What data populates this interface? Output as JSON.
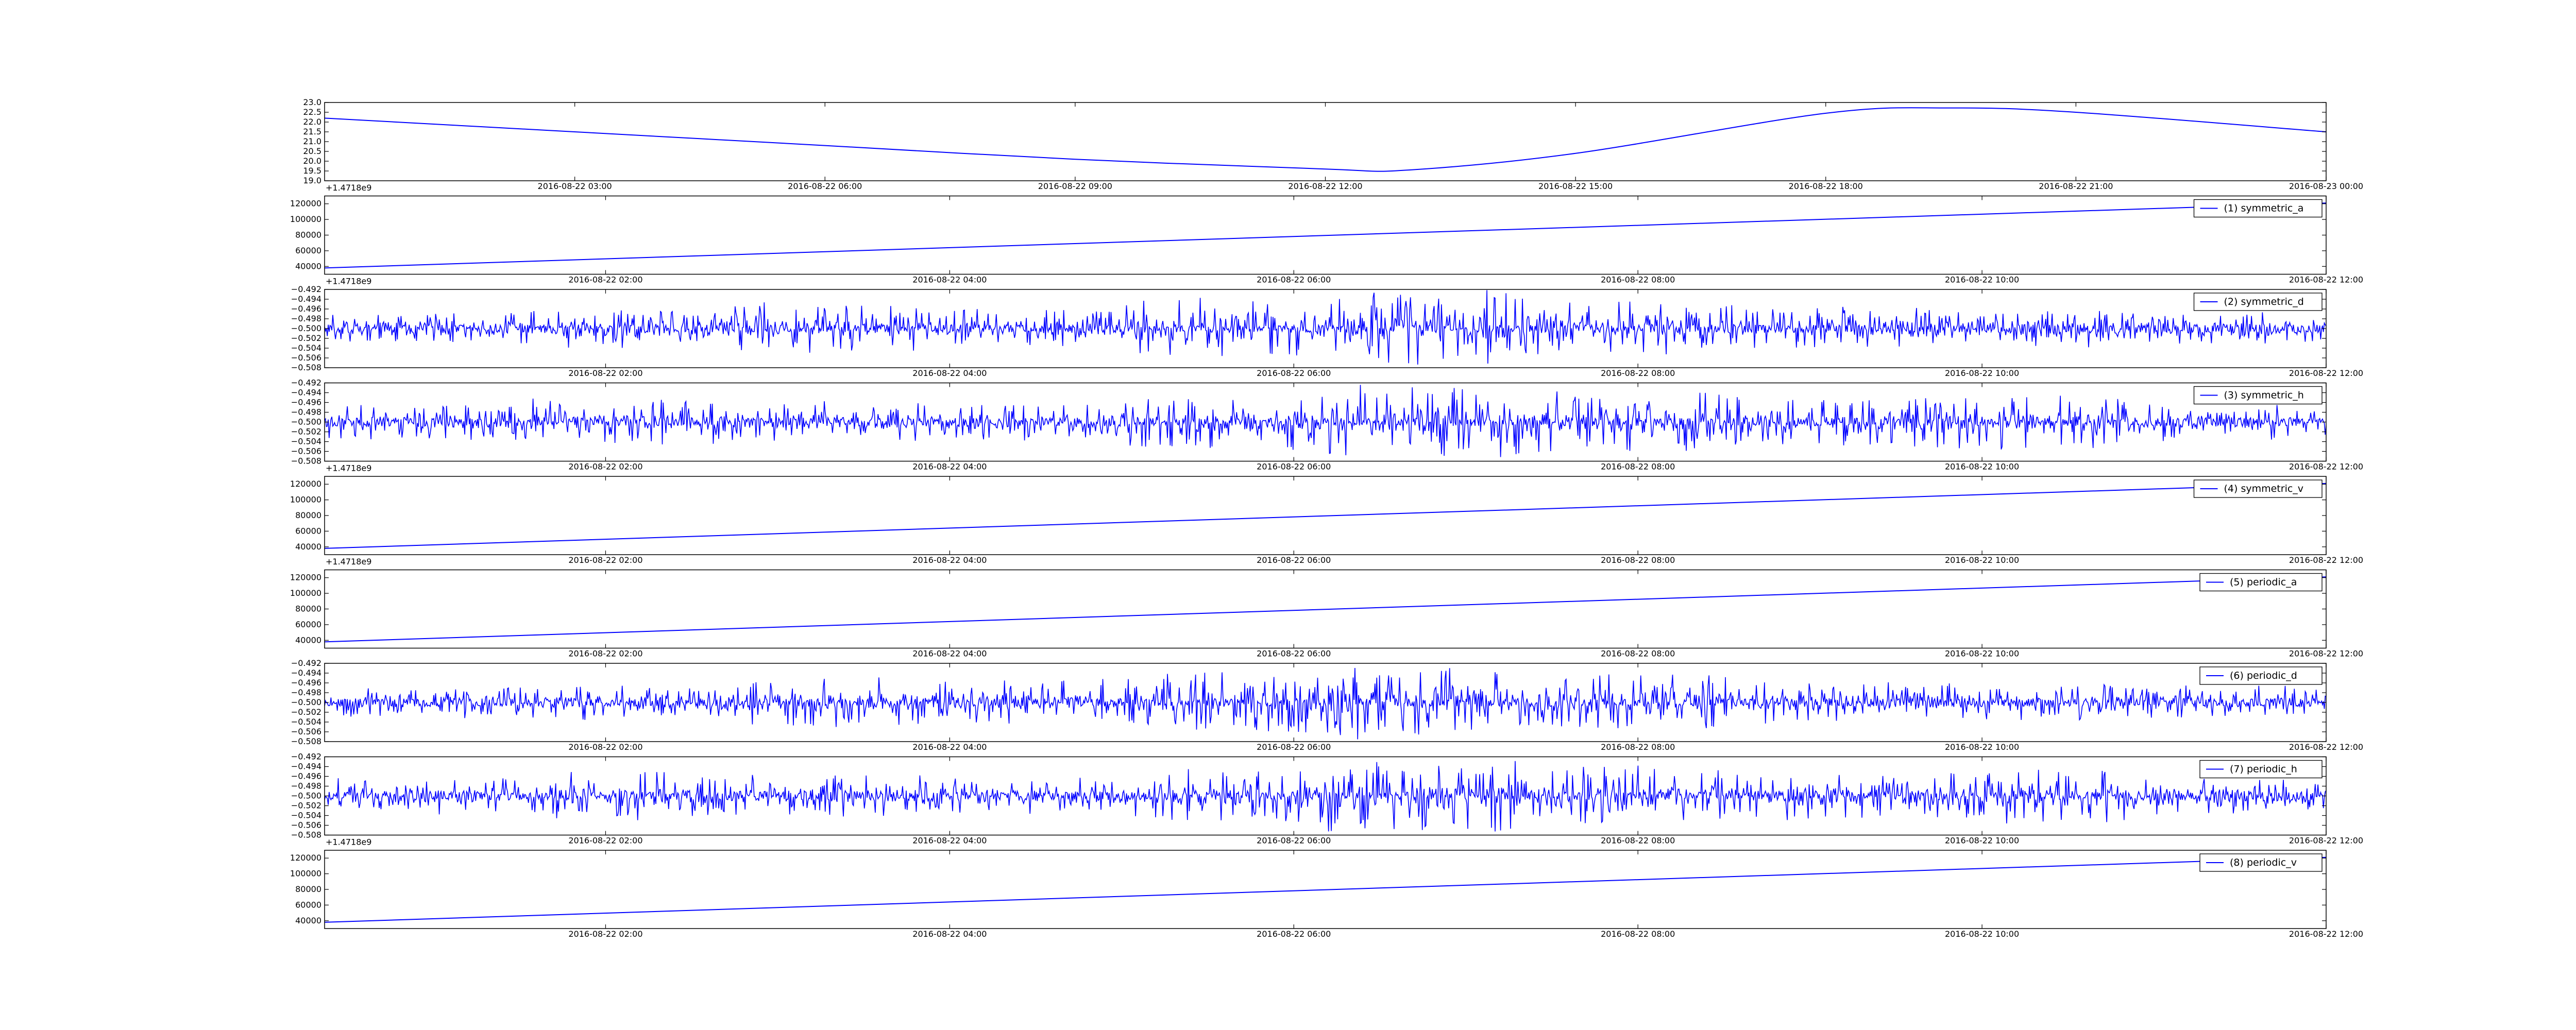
{
  "colors": {
    "line": "#0000ff",
    "axes": "#000000",
    "background": "#ffffff"
  },
  "chart_data": [
    {
      "type": "line",
      "kind": "smooth",
      "legend": "",
      "ylim": [
        19.0,
        23.0
      ],
      "yticks": [
        "19.0",
        "19.5",
        "20.0",
        "20.5",
        "21.0",
        "21.5",
        "22.0",
        "22.5",
        "23.0"
      ],
      "xlim": [
        "2016-08-22 00:00",
        "2016-08-23 00:00"
      ],
      "xtick_labels": [
        "2016-08-22 03:00",
        "2016-08-22 06:00",
        "2016-08-22 09:00",
        "2016-08-22 12:00",
        "2016-08-22 15:00",
        "2016-08-22 18:00",
        "2016-08-22 21:00",
        "2016-08-23 00:00"
      ],
      "offset_label": "+1.4718e9",
      "series": [
        {
          "x": [
            "2016-08-22 00:00",
            "2016-08-22 03:00",
            "2016-08-22 06:00",
            "2016-08-22 09:00",
            "2016-08-22 12:00",
            "2016-08-22 13:00",
            "2016-08-22 15:00",
            "2016-08-22 18:00",
            "2016-08-22 19:30",
            "2016-08-22 21:00",
            "2016-08-23 00:00"
          ],
          "values": [
            22.2,
            21.5,
            20.8,
            20.1,
            19.6,
            19.55,
            20.4,
            22.45,
            22.72,
            22.5,
            21.5
          ]
        }
      ]
    },
    {
      "type": "line",
      "kind": "linear",
      "legend": "(1) symmetric_a",
      "ylim": [
        30000,
        130000
      ],
      "yticks": [
        "40000",
        "60000",
        "80000",
        "100000",
        "120000"
      ],
      "xlim": [
        "2016-08-22 00:22",
        "2016-08-22 12:00"
      ],
      "xtick_labels": [
        "2016-08-22 02:00",
        "2016-08-22 04:00",
        "2016-08-22 06:00",
        "2016-08-22 08:00",
        "2016-08-22 10:00",
        "2016-08-22 12:00"
      ],
      "offset_label": "+1.4718e9",
      "series": [
        {
          "x": [
            "2016-08-22 00:22",
            "2016-08-22 12:00"
          ],
          "values": [
            38000,
            121000
          ]
        }
      ]
    },
    {
      "type": "line",
      "kind": "noise",
      "legend": "(2) symmetric_d",
      "ylim": [
        -0.508,
        -0.492
      ],
      "yticks": [
        "−0.508",
        "−0.506",
        "−0.504",
        "−0.502",
        "−0.500",
        "−0.498",
        "−0.496",
        "−0.494",
        "−0.492"
      ],
      "xlim": [
        "2016-08-22 00:22",
        "2016-08-22 12:00"
      ],
      "xtick_labels": [
        "2016-08-22 02:00",
        "2016-08-22 04:00",
        "2016-08-22 06:00",
        "2016-08-22 08:00",
        "2016-08-22 10:00",
        "2016-08-22 12:00"
      ],
      "offset_label": "",
      "series": [
        {
          "center": -0.5,
          "bias": 0.0008,
          "amp": [
            0.0025,
            0.003,
            0.004,
            0.0035,
            0.005,
            0.006,
            0.0045,
            0.0035,
            0.003,
            0.0025
          ],
          "seed": 11
        }
      ]
    },
    {
      "type": "line",
      "kind": "noise",
      "legend": "(3) symmetric_h",
      "ylim": [
        -0.508,
        -0.492
      ],
      "yticks": [
        "−0.508",
        "−0.506",
        "−0.504",
        "−0.502",
        "−0.500",
        "−0.498",
        "−0.496",
        "−0.494",
        "−0.492"
      ],
      "xlim": [
        "2016-08-22 00:22",
        "2016-08-22 12:00"
      ],
      "xtick_labels": [
        "2016-08-22 02:00",
        "2016-08-22 04:00",
        "2016-08-22 06:00",
        "2016-08-22 08:00",
        "2016-08-22 10:00",
        "2016-08-22 12:00"
      ],
      "offset_label": "+1.4718e9",
      "series": [
        {
          "center": -0.5,
          "bias": -0.0004,
          "amp": [
            0.003,
            0.004,
            0.0035,
            0.003,
            0.0045,
            0.006,
            0.005,
            0.004,
            0.0045,
            0.003
          ],
          "seed": 23
        }
      ]
    },
    {
      "type": "line",
      "kind": "linear",
      "legend": "(4) symmetric_v",
      "ylim": [
        30000,
        130000
      ],
      "yticks": [
        "40000",
        "60000",
        "80000",
        "100000",
        "120000"
      ],
      "xlim": [
        "2016-08-22 00:22",
        "2016-08-22 12:00"
      ],
      "xtick_labels": [
        "2016-08-22 02:00",
        "2016-08-22 04:00",
        "2016-08-22 06:00",
        "2016-08-22 08:00",
        "2016-08-22 10:00",
        "2016-08-22 12:00"
      ],
      "offset_label": "+1.4718e9",
      "series": [
        {
          "x": [
            "2016-08-22 00:22",
            "2016-08-22 12:00"
          ],
          "values": [
            38000,
            121000
          ]
        }
      ]
    },
    {
      "type": "line",
      "kind": "linear",
      "legend": "(5) periodic_a",
      "ylim": [
        30000,
        130000
      ],
      "yticks": [
        "40000",
        "60000",
        "80000",
        "100000",
        "120000"
      ],
      "xlim": [
        "2016-08-22 00:22",
        "2016-08-22 12:00"
      ],
      "xtick_labels": [
        "2016-08-22 02:00",
        "2016-08-22 04:00",
        "2016-08-22 06:00",
        "2016-08-22 08:00",
        "2016-08-22 10:00",
        "2016-08-22 12:00"
      ],
      "offset_label": "",
      "series": [
        {
          "x": [
            "2016-08-22 00:22",
            "2016-08-22 12:00"
          ],
          "values": [
            38000,
            121000
          ]
        }
      ]
    },
    {
      "type": "line",
      "kind": "noise",
      "legend": "(6) periodic_d",
      "ylim": [
        -0.508,
        -0.492
      ],
      "yticks": [
        "−0.508",
        "−0.506",
        "−0.504",
        "−0.502",
        "−0.500",
        "−0.498",
        "−0.496",
        "−0.494",
        "−0.492"
      ],
      "xlim": [
        "2016-08-22 00:22",
        "2016-08-22 12:00"
      ],
      "xtick_labels": [
        "2016-08-22 02:00",
        "2016-08-22 04:00",
        "2016-08-22 06:00",
        "2016-08-22 08:00",
        "2016-08-22 10:00",
        "2016-08-22 12:00"
      ],
      "offset_label": "",
      "series": [
        {
          "center": -0.5,
          "bias": 0.0008,
          "amp": [
            0.0025,
            0.003,
            0.004,
            0.0035,
            0.005,
            0.006,
            0.0045,
            0.0035,
            0.003,
            0.0025
          ],
          "seed": 37
        }
      ]
    },
    {
      "type": "line",
      "kind": "noise",
      "legend": "(7) periodic_h",
      "ylim": [
        -0.508,
        -0.492
      ],
      "yticks": [
        "−0.508",
        "−0.506",
        "−0.504",
        "−0.502",
        "−0.500",
        "−0.498",
        "−0.496",
        "−0.494",
        "−0.492"
      ],
      "xlim": [
        "2016-08-22 00:22",
        "2016-08-22 12:00"
      ],
      "xtick_labels": [
        "2016-08-22 02:00",
        "2016-08-22 04:00",
        "2016-08-22 06:00",
        "2016-08-22 08:00",
        "2016-08-22 10:00",
        "2016-08-22 12:00"
      ],
      "offset_label": "+1.4718e9",
      "series": [
        {
          "center": -0.5,
          "bias": -0.0004,
          "amp": [
            0.003,
            0.004,
            0.0035,
            0.003,
            0.0045,
            0.006,
            0.005,
            0.004,
            0.0045,
            0.003
          ],
          "seed": 53
        }
      ]
    },
    {
      "type": "line",
      "kind": "linear",
      "legend": "(8) periodic_v",
      "ylim": [
        30000,
        130000
      ],
      "yticks": [
        "40000",
        "60000",
        "80000",
        "100000",
        "120000"
      ],
      "xlim": [
        "2016-08-22 00:22",
        "2016-08-22 12:00"
      ],
      "xtick_labels": [
        "2016-08-22 02:00",
        "2016-08-22 04:00",
        "2016-08-22 06:00",
        "2016-08-22 08:00",
        "2016-08-22 10:00",
        "2016-08-22 12:00"
      ],
      "offset_label": "",
      "series": [
        {
          "x": [
            "2016-08-22 00:22",
            "2016-08-22 12:00"
          ],
          "values": [
            38000,
            121000
          ]
        }
      ]
    }
  ]
}
